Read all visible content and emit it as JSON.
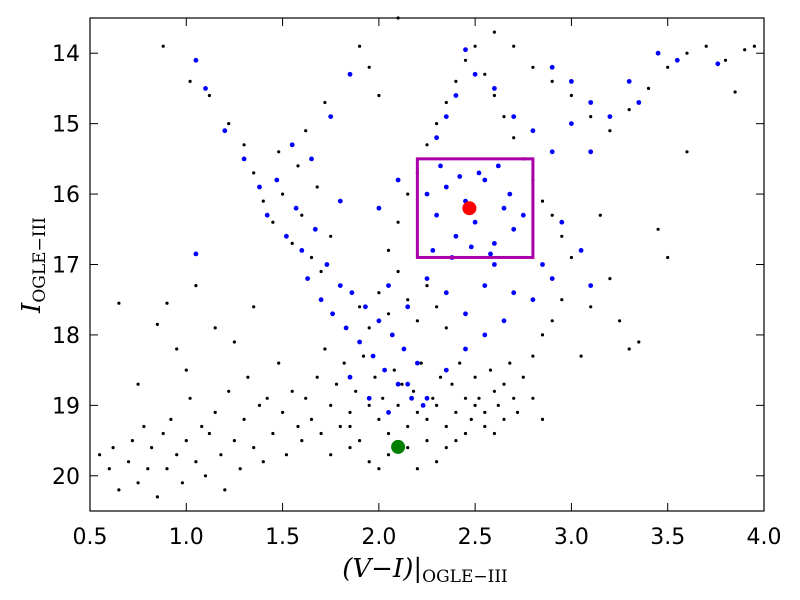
{
  "chart_data": {
    "type": "scatter",
    "title": "",
    "xlabel": {
      "main": "(V−I)|",
      "sub": "OGLE−III"
    },
    "ylabel": {
      "main": "I",
      "sub": "OGLE−III"
    },
    "xlim": [
      0.5,
      4.0
    ],
    "ylim": [
      20.5,
      13.5
    ],
    "y_inverted": true,
    "grid": false,
    "legend": "none",
    "x_ticks": [
      "0.5",
      "1.0",
      "1.5",
      "2.0",
      "2.5",
      "3.0",
      "3.5",
      "4.0"
    ],
    "x_tick_values": [
      0.5,
      1.0,
      1.5,
      2.0,
      2.5,
      3.0,
      3.5,
      4.0
    ],
    "y_ticks": [
      "14",
      "15",
      "16",
      "17",
      "18",
      "19",
      "20"
    ],
    "y_tick_values": [
      14,
      15,
      16,
      17,
      18,
      19,
      20
    ],
    "series": [
      {
        "color": "#000000",
        "marker": "small-dot",
        "points": [
          [
            0.55,
            19.7
          ],
          [
            0.6,
            19.9
          ],
          [
            0.62,
            19.6
          ],
          [
            0.65,
            20.2
          ],
          [
            0.7,
            19.8
          ],
          [
            0.72,
            19.5
          ],
          [
            0.75,
            20.1
          ],
          [
            0.78,
            19.3
          ],
          [
            0.8,
            19.9
          ],
          [
            0.82,
            19.6
          ],
          [
            0.85,
            20.3
          ],
          [
            0.88,
            19.4
          ],
          [
            0.9,
            19.9
          ],
          [
            0.92,
            19.2
          ],
          [
            0.95,
            19.7
          ],
          [
            0.98,
            20.1
          ],
          [
            1.0,
            19.5
          ],
          [
            1.02,
            18.9
          ],
          [
            1.05,
            19.8
          ],
          [
            1.08,
            19.3
          ],
          [
            1.1,
            20.0
          ],
          [
            1.12,
            19.4
          ],
          [
            1.15,
            19.1
          ],
          [
            1.18,
            19.7
          ],
          [
            1.2,
            20.2
          ],
          [
            1.22,
            18.8
          ],
          [
            1.25,
            19.5
          ],
          [
            1.28,
            19.9
          ],
          [
            1.3,
            19.2
          ],
          [
            1.32,
            18.6
          ],
          [
            1.35,
            19.6
          ],
          [
            1.38,
            19.0
          ],
          [
            1.4,
            19.8
          ],
          [
            1.42,
            18.9
          ],
          [
            1.45,
            19.4
          ],
          [
            1.48,
            18.4
          ],
          [
            1.5,
            19.1
          ],
          [
            1.52,
            19.7
          ],
          [
            1.55,
            18.8
          ],
          [
            1.58,
            19.3
          ],
          [
            0.65,
            17.55
          ],
          [
            0.85,
            17.85
          ],
          [
            0.9,
            17.55
          ],
          [
            1.0,
            18.5
          ],
          [
            1.05,
            17.3
          ],
          [
            1.15,
            17.9
          ],
          [
            0.75,
            18.7
          ],
          [
            0.95,
            18.2
          ],
          [
            1.25,
            18.1
          ],
          [
            1.35,
            17.6
          ],
          [
            0.88,
            13.9
          ],
          [
            1.02,
            14.4
          ],
          [
            1.12,
            14.6
          ],
          [
            1.3,
            15.3
          ],
          [
            1.22,
            15.0
          ],
          [
            1.35,
            15.7
          ],
          [
            1.4,
            16.1
          ],
          [
            1.45,
            16.4
          ],
          [
            1.5,
            16.0
          ],
          [
            1.55,
            16.7
          ],
          [
            1.6,
            16.3
          ],
          [
            1.58,
            15.6
          ],
          [
            1.65,
            16.9
          ],
          [
            1.7,
            17.1
          ],
          [
            1.62,
            15.1
          ],
          [
            1.75,
            16.6
          ],
          [
            1.8,
            17.3
          ],
          [
            1.48,
            15.4
          ],
          [
            1.68,
            15.9
          ],
          [
            1.72,
            14.7
          ],
          [
            1.6,
            19.5
          ],
          [
            1.62,
            18.9
          ],
          [
            1.65,
            19.2
          ],
          [
            1.68,
            18.6
          ],
          [
            1.7,
            19.4
          ],
          [
            1.72,
            18.2
          ],
          [
            1.75,
            19.0
          ],
          [
            1.78,
            18.7
          ],
          [
            1.8,
            19.3
          ],
          [
            1.82,
            18.4
          ],
          [
            1.85,
            19.1
          ],
          [
            1.88,
            18.8
          ],
          [
            1.9,
            19.5
          ],
          [
            1.92,
            18.3
          ],
          [
            1.95,
            19.0
          ],
          [
            1.98,
            18.6
          ],
          [
            2.0,
            19.2
          ],
          [
            2.02,
            18.9
          ],
          [
            2.05,
            19.4
          ],
          [
            2.08,
            18.5
          ],
          [
            2.1,
            19.0
          ],
          [
            2.12,
            18.7
          ],
          [
            2.15,
            19.3
          ],
          [
            2.18,
            18.8
          ],
          [
            2.2,
            19.1
          ],
          [
            2.22,
            18.4
          ],
          [
            2.25,
            19.2
          ],
          [
            2.28,
            18.9
          ],
          [
            2.3,
            19.0
          ],
          [
            2.32,
            18.6
          ],
          [
            2.35,
            19.3
          ],
          [
            2.38,
            18.7
          ],
          [
            2.4,
            19.1
          ],
          [
            2.42,
            18.4
          ],
          [
            2.45,
            18.9
          ],
          [
            2.48,
            19.2
          ],
          [
            2.5,
            18.6
          ],
          [
            2.52,
            18.9
          ],
          [
            2.55,
            19.1
          ],
          [
            2.58,
            18.5
          ],
          [
            2.6,
            18.8
          ],
          [
            2.62,
            19.0
          ],
          [
            2.65,
            18.7
          ],
          [
            2.68,
            18.4
          ],
          [
            2.7,
            18.9
          ],
          [
            2.75,
            18.6
          ],
          [
            2.8,
            18.3
          ],
          [
            2.85,
            18.0
          ],
          [
            2.9,
            17.8
          ],
          [
            2.95,
            17.5
          ],
          [
            1.75,
            19.7
          ],
          [
            1.85,
            19.6
          ],
          [
            1.95,
            19.8
          ],
          [
            2.05,
            19.7
          ],
          [
            2.15,
            19.6
          ],
          [
            2.25,
            19.5
          ],
          [
            2.35,
            19.6
          ],
          [
            2.45,
            19.4
          ],
          [
            2.55,
            19.3
          ],
          [
            2.65,
            19.2
          ],
          [
            1.9,
            17.6
          ],
          [
            1.95,
            17.9
          ],
          [
            2.0,
            17.4
          ],
          [
            2.05,
            17.7
          ],
          [
            2.1,
            17.1
          ],
          [
            2.15,
            17.5
          ],
          [
            2.2,
            17.8
          ],
          [
            2.25,
            17.3
          ],
          [
            2.3,
            17.6
          ],
          [
            2.35,
            17.9
          ],
          [
            2.05,
            16.8
          ],
          [
            2.1,
            16.4
          ],
          [
            2.15,
            16.0
          ],
          [
            2.2,
            15.7
          ],
          [
            2.25,
            15.3
          ],
          [
            2.3,
            15.0
          ],
          [
            2.35,
            14.7
          ],
          [
            2.4,
            14.4
          ],
          [
            2.45,
            14.1
          ],
          [
            2.5,
            13.9
          ],
          [
            2.55,
            14.3
          ],
          [
            2.6,
            14.6
          ],
          [
            2.65,
            14.9
          ],
          [
            2.7,
            15.2
          ],
          [
            2.75,
            15.5
          ],
          [
            2.8,
            15.8
          ],
          [
            2.85,
            16.1
          ],
          [
            2.9,
            16.3
          ],
          [
            2.95,
            16.6
          ],
          [
            3.0,
            16.9
          ],
          [
            2.6,
            13.7
          ],
          [
            2.7,
            13.9
          ],
          [
            2.8,
            14.2
          ],
          [
            2.9,
            14.4
          ],
          [
            3.0,
            14.6
          ],
          [
            3.1,
            14.9
          ],
          [
            3.2,
            15.1
          ],
          [
            3.3,
            14.8
          ],
          [
            3.4,
            14.5
          ],
          [
            3.5,
            14.2
          ],
          [
            3.6,
            14.0
          ],
          [
            3.7,
            13.9
          ],
          [
            3.8,
            14.1
          ],
          [
            3.9,
            13.95
          ],
          [
            3.95,
            13.9
          ],
          [
            3.85,
            14.55
          ],
          [
            3.6,
            15.4
          ],
          [
            3.45,
            16.5
          ],
          [
            3.2,
            17.2
          ],
          [
            3.35,
            18.1
          ],
          [
            3.25,
            17.8
          ],
          [
            3.1,
            17.6
          ],
          [
            3.05,
            18.3
          ],
          [
            3.3,
            18.2
          ],
          [
            2.1,
            13.5
          ],
          [
            1.9,
            13.9
          ],
          [
            1.95,
            14.2
          ],
          [
            2.0,
            14.6
          ],
          [
            3.15,
            16.3
          ],
          [
            3.5,
            16.9
          ],
          [
            2.2,
            19.9
          ],
          [
            2.3,
            19.8
          ],
          [
            2.0,
            19.9
          ],
          [
            1.85,
            19.3
          ],
          [
            2.4,
            19.5
          ],
          [
            2.5,
            19.0
          ],
          [
            2.6,
            19.4
          ],
          [
            2.72,
            19.1
          ],
          [
            2.8,
            18.9
          ],
          [
            2.85,
            19.2
          ]
        ]
      },
      {
        "color": "#0000ff",
        "marker": "dot",
        "points": [
          [
            1.05,
            14.1
          ],
          [
            1.05,
            16.85
          ],
          [
            1.1,
            14.5
          ],
          [
            1.2,
            15.1
          ],
          [
            1.3,
            15.5
          ],
          [
            1.38,
            15.9
          ],
          [
            1.42,
            16.3
          ],
          [
            1.47,
            15.8
          ],
          [
            1.52,
            16.6
          ],
          [
            1.57,
            16.2
          ],
          [
            1.6,
            16.8
          ],
          [
            1.63,
            17.2
          ],
          [
            1.67,
            16.5
          ],
          [
            1.7,
            17.5
          ],
          [
            1.73,
            17.0
          ],
          [
            1.76,
            17.7
          ],
          [
            1.8,
            17.3
          ],
          [
            1.83,
            17.9
          ],
          [
            1.86,
            17.4
          ],
          [
            1.9,
            18.1
          ],
          [
            1.93,
            17.6
          ],
          [
            1.97,
            18.3
          ],
          [
            2.0,
            17.8
          ],
          [
            2.03,
            18.5
          ],
          [
            2.07,
            18.0
          ],
          [
            2.1,
            18.7
          ],
          [
            2.13,
            18.2
          ],
          [
            2.17,
            18.9
          ],
          [
            2.2,
            18.4
          ],
          [
            2.23,
            19.0
          ],
          [
            1.85,
            18.6
          ],
          [
            1.95,
            18.9
          ],
          [
            2.05,
            19.1
          ],
          [
            2.15,
            18.7
          ],
          [
            2.25,
            18.9
          ],
          [
            2.35,
            18.5
          ],
          [
            2.45,
            18.2
          ],
          [
            2.55,
            18.0
          ],
          [
            2.65,
            17.8
          ],
          [
            2.7,
            17.4
          ],
          [
            2.25,
            16.0
          ],
          [
            2.3,
            16.3
          ],
          [
            2.35,
            15.9
          ],
          [
            2.4,
            16.6
          ],
          [
            2.45,
            16.1
          ],
          [
            2.5,
            16.4
          ],
          [
            2.55,
            15.8
          ],
          [
            2.6,
            16.7
          ],
          [
            2.65,
            16.2
          ],
          [
            2.7,
            16.5
          ],
          [
            2.28,
            16.8
          ],
          [
            2.38,
            16.9
          ],
          [
            2.48,
            16.75
          ],
          [
            2.58,
            16.85
          ],
          [
            2.68,
            16.0
          ],
          [
            2.75,
            16.3
          ],
          [
            2.32,
            15.6
          ],
          [
            2.52,
            15.7
          ],
          [
            2.62,
            15.6
          ],
          [
            2.42,
            15.75
          ],
          [
            2.3,
            15.2
          ],
          [
            2.35,
            14.9
          ],
          [
            2.4,
            14.6
          ],
          [
            2.5,
            14.3
          ],
          [
            2.45,
            13.95
          ],
          [
            2.6,
            14.5
          ],
          [
            2.7,
            14.9
          ],
          [
            2.8,
            15.1
          ],
          [
            2.9,
            15.4
          ],
          [
            3.0,
            15.0
          ],
          [
            2.9,
            14.2
          ],
          [
            3.0,
            14.4
          ],
          [
            3.1,
            14.7
          ],
          [
            3.2,
            14.9
          ],
          [
            3.3,
            14.4
          ],
          [
            3.45,
            14.0
          ],
          [
            3.55,
            14.1
          ],
          [
            3.76,
            14.15
          ],
          [
            3.35,
            14.7
          ],
          [
            3.1,
            15.4
          ],
          [
            2.95,
            16.4
          ],
          [
            3.05,
            16.8
          ],
          [
            3.1,
            17.3
          ],
          [
            2.85,
            17.0
          ],
          [
            2.8,
            17.5
          ],
          [
            2.9,
            17.2
          ],
          [
            1.55,
            15.3
          ],
          [
            1.65,
            15.5
          ],
          [
            1.75,
            14.9
          ],
          [
            1.85,
            14.3
          ],
          [
            2.0,
            16.2
          ],
          [
            2.1,
            15.8
          ],
          [
            2.05,
            17.3
          ],
          [
            2.15,
            17.6
          ],
          [
            2.25,
            17.2
          ],
          [
            2.35,
            17.4
          ],
          [
            2.45,
            17.7
          ],
          [
            2.55,
            17.3
          ],
          [
            2.6,
            17.0
          ],
          [
            1.8,
            16.1
          ]
        ]
      },
      {
        "color": "#ff0000",
        "marker": "large-dot",
        "points": [
          [
            2.47,
            16.2
          ]
        ]
      },
      {
        "color": "#008000",
        "marker": "large-dot",
        "points": [
          [
            2.1,
            19.59
          ]
        ]
      }
    ],
    "annotations": [
      {
        "type": "rectangle",
        "color": "#aa00aa",
        "x_range": [
          2.2,
          2.8
        ],
        "y_range": [
          15.5,
          16.9
        ]
      }
    ]
  }
}
